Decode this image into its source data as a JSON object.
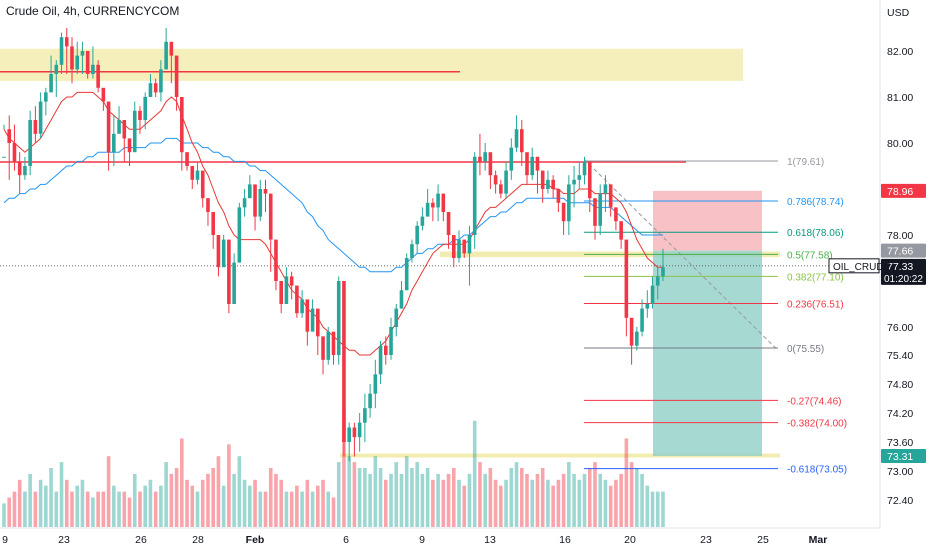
{
  "header": {
    "title": "Crude Oil, 4h, CURRENCYCOM"
  },
  "chart_data": {
    "type": "candlestick",
    "title": "Crude Oil, 4h, CURRENCYCOM",
    "currency": "USD",
    "y_ticks": [
      82.0,
      81.0,
      80.0,
      78.0,
      76.0,
      75.4,
      74.8,
      74.2,
      73.6,
      73.0,
      72.4
    ],
    "y_tick_labels": [
      "82.00",
      "81.00",
      "80.00",
      "78.00",
      "76.00",
      "75.40",
      "74.80",
      "74.20",
      "73.60",
      "73.00",
      "72.40"
    ],
    "x_ticks": [
      {
        "label": "9",
        "x": 5
      },
      {
        "label": "23",
        "x": 64
      },
      {
        "label": "26",
        "x": 141
      },
      {
        "label": "28",
        "x": 198
      },
      {
        "label": "Feb",
        "x": 255
      },
      {
        "label": "6",
        "x": 346
      },
      {
        "label": "9",
        "x": 422
      },
      {
        "label": "13",
        "x": 490
      },
      {
        "label": "16",
        "x": 565
      },
      {
        "label": "20",
        "x": 630
      },
      {
        "label": "23",
        "x": 706
      },
      {
        "label": "25",
        "x": 763
      },
      {
        "label": "Mar",
        "x": 818
      }
    ],
    "fibonacci": [
      {
        "label": "1(79.61)",
        "price": 79.61,
        "color": "#9598a1"
      },
      {
        "label": "0.786(78.74)",
        "price": 78.74,
        "color": "#2196f3"
      },
      {
        "label": "0.618(78.06)",
        "price": 78.06,
        "color": "#089981"
      },
      {
        "label": "0.5(77.58)",
        "price": 77.58,
        "color": "#4caf50"
      },
      {
        "label": "0.382(77.10)",
        "price": 77.1,
        "color": "#8bc34a"
      },
      {
        "label": "0.236(76.51)",
        "price": 76.51,
        "color": "#f23645"
      },
      {
        "label": "0(75.55)",
        "price": 75.55,
        "color": "#787b86"
      },
      {
        "label": "-0.27(74.46)",
        "price": 74.46,
        "color": "#f23645"
      },
      {
        "label": "-0.382(74.00)",
        "price": 74.0,
        "color": "#f23645"
      },
      {
        "label": "-0.618(73.05)",
        "price": 73.05,
        "color": "#2962ff"
      }
    ],
    "price_tags": [
      {
        "label": "78.96",
        "price": 78.96,
        "color": "#f23645",
        "text_color": "#ffffff"
      },
      {
        "label": "77.66",
        "price": 77.66,
        "color": "#9598a1",
        "text_color": "#ffffff"
      },
      {
        "label": "77.33",
        "price": 77.33,
        "color": "#131722",
        "text_color": "#ffffff",
        "sub_label": "01:20:22"
      },
      {
        "label": "73.31",
        "price": 73.31,
        "color": "#26a69a",
        "text_color": "#ffffff"
      }
    ],
    "symbol_tag": "OIL_CRUDE",
    "position": {
      "type": "short",
      "entry": 77.66,
      "stop": 78.96,
      "target": 73.31
    },
    "candles": [
      [
        79.7,
        79.7,
        80.4,
        80.3
      ],
      [
        80.3,
        80.0,
        80.6,
        79.2
      ],
      [
        80.0,
        79.6,
        80.4,
        79.4
      ],
      [
        79.6,
        79.3,
        79.8,
        78.9
      ],
      [
        79.3,
        79.5,
        79.7,
        79.2
      ],
      [
        79.5,
        80.5,
        80.7,
        79.3
      ],
      [
        80.5,
        80.2,
        80.8,
        80.0
      ],
      [
        80.2,
        80.9,
        81.1,
        80.1
      ],
      [
        80.9,
        81.1,
        81.2,
        80.6
      ],
      [
        81.1,
        81.5,
        81.9,
        81.3
      ],
      [
        81.5,
        81.7,
        81.8,
        81.0
      ],
      [
        81.7,
        82.3,
        82.4,
        81.5
      ],
      [
        82.3,
        82.1,
        82.5,
        81.5
      ],
      [
        82.1,
        81.6,
        82.3,
        81.3
      ],
      [
        81.6,
        81.9,
        82.2,
        81.5
      ],
      [
        81.9,
        82.0,
        82.2,
        81.5
      ],
      [
        82.0,
        81.5,
        81.9,
        81.4
      ],
      [
        81.5,
        81.7,
        82.1,
        81.4
      ],
      [
        81.7,
        81.2,
        81.8,
        81.1
      ],
      [
        81.2,
        80.9,
        81.1,
        80.7
      ],
      [
        80.9,
        79.8,
        80.2,
        79.4
      ],
      [
        79.8,
        80.2,
        80.6,
        79.5
      ],
      [
        80.2,
        80.5,
        80.8,
        80.3
      ],
      [
        80.5,
        80.1,
        80.4,
        79.6
      ],
      [
        80.1,
        79.8,
        80.0,
        79.5
      ],
      [
        79.8,
        80.7,
        80.9,
        80.6
      ],
      [
        80.7,
        80.5,
        80.8,
        80.2
      ],
      [
        80.5,
        81.0,
        81.1,
        80.3
      ],
      [
        81.0,
        81.3,
        81.5,
        81.1
      ],
      [
        81.3,
        81.1,
        81.4,
        81.0
      ],
      [
        81.1,
        81.6,
        81.8,
        80.9
      ],
      [
        81.6,
        82.2,
        82.5,
        81.6
      ],
      [
        82.2,
        81.9,
        82.1,
        81.3
      ],
      [
        81.9,
        81.0,
        81.5,
        80.7
      ],
      [
        81.0,
        79.8,
        80.2,
        79.4
      ],
      [
        79.8,
        79.5,
        79.8,
        79.4
      ],
      [
        79.5,
        79.2,
        79.5,
        79.0
      ],
      [
        79.2,
        79.4,
        79.6,
        79.1
      ],
      [
        79.4,
        78.8,
        79.1,
        78.6
      ],
      [
        78.8,
        78.5,
        78.8,
        78.2
      ],
      [
        78.5,
        78.0,
        78.3,
        77.7
      ],
      [
        78.0,
        77.3,
        77.6,
        77.1
      ],
      [
        77.3,
        77.9,
        78.0,
        77.6
      ],
      [
        77.9,
        76.5,
        76.9,
        76.3
      ],
      [
        76.5,
        77.4,
        77.6,
        76.9
      ],
      [
        77.4,
        78.6,
        78.7,
        77.6
      ],
      [
        78.6,
        78.8,
        79.0,
        78.4
      ],
      [
        78.8,
        79.1,
        79.3,
        78.9
      ],
      [
        79.1,
        78.4,
        78.7,
        78.1
      ],
      [
        78.4,
        79.0,
        79.2,
        78.3
      ],
      [
        79.0,
        78.9,
        79.2,
        78.5
      ],
      [
        78.9,
        77.9,
        78.1,
        77.2
      ],
      [
        77.9,
        77.0,
        77.2,
        76.8
      ],
      [
        77.0,
        76.5,
        76.7,
        76.3
      ],
      [
        76.5,
        77.1,
        77.3,
        76.6
      ],
      [
        77.1,
        76.9,
        77.2,
        76.6
      ],
      [
        76.9,
        76.3,
        76.7,
        76.2
      ],
      [
        76.3,
        76.6,
        76.8,
        76.2
      ],
      [
        76.6,
        75.9,
        76.2,
        75.6
      ],
      [
        75.9,
        76.4,
        76.6,
        76.0
      ],
      [
        76.4,
        75.8,
        76.1,
        75.4
      ],
      [
        75.8,
        75.3,
        75.6,
        75.0
      ],
      [
        75.3,
        75.9,
        76.0,
        75.2
      ],
      [
        75.9,
        75.4,
        75.6,
        75.2
      ],
      [
        75.4,
        77.0,
        77.1,
        75.2
      ],
      [
        77.0,
        73.6,
        73.8,
        73.3
      ],
      [
        73.6,
        73.9,
        74.0,
        73.2
      ],
      [
        73.9,
        73.7,
        74.0,
        73.3
      ],
      [
        73.7,
        74.0,
        74.2,
        73.4
      ],
      [
        74.0,
        74.3,
        74.6,
        73.6
      ],
      [
        74.3,
        74.6,
        74.8,
        74.1
      ],
      [
        74.6,
        75.0,
        75.3,
        74.3
      ],
      [
        75.0,
        75.6,
        75.7,
        74.8
      ],
      [
        75.6,
        75.4,
        75.8,
        75.2
      ],
      [
        75.4,
        76.0,
        76.2,
        75.3
      ],
      [
        76.0,
        76.4,
        76.5,
        75.8
      ],
      [
        76.4,
        76.8,
        77.0,
        76.4
      ],
      [
        76.8,
        77.5,
        77.6,
        76.8
      ],
      [
        77.5,
        77.8,
        77.9,
        77.4
      ],
      [
        77.8,
        78.2,
        78.3,
        77.6
      ],
      [
        78.2,
        78.4,
        78.6,
        78.1
      ],
      [
        78.4,
        78.7,
        79.0,
        78.5
      ],
      [
        78.7,
        78.6,
        78.8,
        78.3
      ],
      [
        78.6,
        78.9,
        79.1,
        78.3
      ],
      [
        78.9,
        78.5,
        78.7,
        78.3
      ],
      [
        78.5,
        78.0,
        78.2,
        77.7
      ],
      [
        78.0,
        77.5,
        77.8,
        77.3
      ],
      [
        77.5,
        77.9,
        78.1,
        77.4
      ],
      [
        77.9,
        77.6,
        77.8,
        77.5
      ],
      [
        77.6,
        78.0,
        78.2,
        76.9
      ],
      [
        78.0,
        79.7,
        79.8,
        77.7
      ],
      [
        79.7,
        79.6,
        80.2,
        79.3
      ],
      [
        79.6,
        79.8,
        80.0,
        79.4
      ],
      [
        79.8,
        79.3,
        79.7,
        79.0
      ],
      [
        79.3,
        79.1,
        79.4,
        78.9
      ],
      [
        79.1,
        78.9,
        79.2,
        78.8
      ],
      [
        78.9,
        79.4,
        79.6,
        78.8
      ],
      [
        79.4,
        79.9,
        80.1,
        79.2
      ],
      [
        79.9,
        80.3,
        80.6,
        79.8
      ],
      [
        80.3,
        79.8,
        80.5,
        79.5
      ],
      [
        79.8,
        79.3,
        79.6,
        79.1
      ],
      [
        79.3,
        79.7,
        79.9,
        79.2
      ],
      [
        79.7,
        79.4,
        79.7,
        78.9
      ],
      [
        79.4,
        79.0,
        79.3,
        78.7
      ],
      [
        79.0,
        79.2,
        79.4,
        78.9
      ],
      [
        79.2,
        79.0,
        79.3,
        78.8
      ],
      [
        79.0,
        78.7,
        78.9,
        78.5
      ],
      [
        78.7,
        78.3,
        78.6,
        78.0
      ],
      [
        78.3,
        79.1,
        79.3,
        78.0
      ],
      [
        79.1,
        79.2,
        79.5,
        78.6
      ],
      [
        79.2,
        79.3,
        79.6,
        79.0
      ],
      [
        79.3,
        79.6,
        79.7,
        79.1
      ],
      [
        79.6,
        78.8,
        79.2,
        78.5
      ],
      [
        78.8,
        78.2,
        78.6,
        77.9
      ],
      [
        78.2,
        78.9,
        79.1,
        78.0
      ],
      [
        78.9,
        79.1,
        79.3,
        78.5
      ],
      [
        79.1,
        78.6,
        78.9,
        78.4
      ],
      [
        78.6,
        78.3,
        78.6,
        78.1
      ],
      [
        78.3,
        77.9,
        78.2,
        77.7
      ],
      [
        77.9,
        76.2,
        76.6,
        75.8
      ],
      [
        76.2,
        75.6,
        75.9,
        75.2
      ],
      [
        75.6,
        75.9,
        76.0,
        75.5
      ],
      [
        75.9,
        76.4,
        76.6,
        75.8
      ],
      [
        76.4,
        76.5,
        76.8,
        76.2
      ],
      [
        76.5,
        76.9,
        77.1,
        76.4
      ],
      [
        76.9,
        77.1,
        77.3,
        76.6
      ],
      [
        77.1,
        77.3,
        77.7,
        77.0
      ]
    ],
    "ma_red": [
      80.3,
      80.1,
      80.0,
      79.9,
      79.8,
      79.9,
      80.0,
      80.1,
      80.3,
      80.5,
      80.7,
      80.9,
      81.0,
      81.0,
      81.1,
      81.1,
      81.1,
      81.1,
      81.0,
      80.9,
      80.7,
      80.6,
      80.5,
      80.4,
      80.3,
      80.3,
      80.3,
      80.4,
      80.5,
      80.6,
      80.7,
      80.9,
      81.0,
      80.9,
      80.6,
      80.3,
      80.0,
      79.8,
      79.5,
      79.3,
      79.0,
      78.7,
      78.5,
      78.2,
      78.0,
      77.9,
      77.9,
      77.9,
      77.9,
      77.9,
      77.8,
      77.6,
      77.4,
      77.2,
      77.0,
      76.8,
      76.7,
      76.6,
      76.4,
      76.3,
      76.2,
      76.0,
      75.9,
      75.8,
      75.7,
      75.6,
      75.5,
      75.5,
      75.4,
      75.4,
      75.4,
      75.5,
      75.6,
      75.7,
      75.9,
      76.1,
      76.3,
      76.5,
      76.8,
      77.0,
      77.2,
      77.4,
      77.6,
      77.7,
      77.8,
      77.8,
      77.8,
      77.8,
      77.8,
      77.9,
      78.1,
      78.3,
      78.5,
      78.6,
      78.6,
      78.7,
      78.8,
      78.9,
      79.0,
      79.1,
      79.1,
      79.1,
      79.1,
      79.1,
      79.1,
      79.0,
      79.0,
      78.9,
      78.9,
      78.9,
      79.0,
      79.0,
      79.0,
      78.9,
      78.9,
      78.9,
      78.9,
      78.8,
      78.7,
      78.5,
      78.2,
      77.9,
      77.7,
      77.5,
      77.4,
      77.3,
      77.3
    ],
    "ma_blue": [
      78.7,
      78.8,
      78.8,
      78.9,
      78.9,
      79.0,
      79.0,
      79.1,
      79.1,
      79.2,
      79.3,
      79.4,
      79.5,
      79.5,
      79.6,
      79.6,
      79.7,
      79.7,
      79.8,
      79.8,
      79.8,
      79.8,
      79.8,
      79.9,
      79.9,
      79.9,
      79.9,
      79.9,
      80.0,
      80.0,
      80.0,
      80.1,
      80.1,
      80.1,
      80.0,
      80.0,
      80.0,
      80.0,
      79.9,
      79.9,
      79.8,
      79.8,
      79.7,
      79.7,
      79.6,
      79.6,
      79.6,
      79.5,
      79.5,
      79.4,
      79.4,
      79.3,
      79.2,
      79.1,
      79.0,
      78.9,
      78.8,
      78.7,
      78.5,
      78.4,
      78.2,
      78.1,
      77.9,
      77.8,
      77.7,
      77.6,
      77.5,
      77.4,
      77.3,
      77.3,
      77.2,
      77.2,
      77.2,
      77.2,
      77.2,
      77.3,
      77.3,
      77.4,
      77.5,
      77.6,
      77.6,
      77.7,
      77.7,
      77.8,
      77.8,
      77.8,
      77.9,
      77.9,
      78.0,
      78.0,
      78.1,
      78.2,
      78.3,
      78.4,
      78.4,
      78.5,
      78.5,
      78.6,
      78.7,
      78.7,
      78.8,
      78.8,
      78.8,
      78.8,
      78.8,
      78.8,
      78.8,
      78.8,
      78.7,
      78.7,
      78.7,
      78.7,
      78.7,
      78.6,
      78.6,
      78.6,
      78.6,
      78.5,
      78.4,
      78.3,
      78.2,
      78.1,
      78.0,
      78.0,
      78.0,
      78.0,
      78.0
    ],
    "volumes": [
      0.2,
      0.25,
      0.3,
      0.4,
      0.3,
      0.45,
      0.3,
      0.4,
      0.35,
      0.5,
      0.3,
      0.55,
      0.4,
      0.3,
      0.35,
      0.4,
      0.3,
      0.25,
      0.3,
      0.3,
      0.6,
      0.35,
      0.3,
      0.3,
      0.25,
      0.45,
      0.3,
      0.35,
      0.4,
      0.3,
      0.35,
      0.55,
      0.45,
      0.5,
      0.75,
      0.4,
      0.35,
      0.3,
      0.4,
      0.45,
      0.5,
      0.6,
      0.35,
      0.7,
      0.45,
      0.6,
      0.4,
      0.35,
      0.4,
      0.3,
      0.3,
      0.5,
      0.45,
      0.4,
      0.3,
      0.3,
      0.35,
      0.3,
      0.4,
      0.3,
      0.35,
      0.4,
      0.3,
      0.25,
      0.55,
      1.0,
      0.6,
      0.55,
      0.5,
      0.5,
      0.45,
      0.6,
      0.5,
      0.4,
      0.45,
      0.55,
      0.45,
      0.6,
      0.5,
      0.55,
      0.45,
      0.5,
      0.4,
      0.45,
      0.4,
      0.45,
      0.5,
      0.4,
      0.35,
      0.45,
      0.9,
      0.55,
      0.45,
      0.5,
      0.4,
      0.35,
      0.4,
      0.5,
      0.55,
      0.5,
      0.45,
      0.4,
      0.45,
      0.5,
      0.4,
      0.35,
      0.4,
      0.45,
      0.55,
      0.45,
      0.4,
      0.45,
      0.5,
      0.55,
      0.45,
      0.4,
      0.35,
      0.4,
      0.45,
      0.75,
      0.55,
      0.5,
      0.45,
      0.35,
      0.3,
      0.3,
      0.3
    ],
    "candle_x_start": 4,
    "candle_spacing": 5.23,
    "up_color": "#26a69a",
    "down_color": "#f23645",
    "ma_red_color": "#e53935",
    "ma_blue_color": "#2196f3"
  }
}
